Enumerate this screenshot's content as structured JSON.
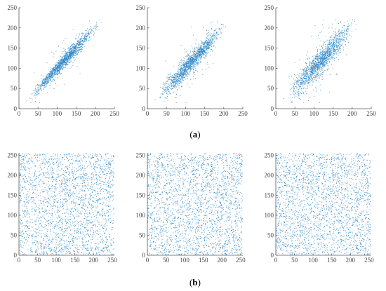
{
  "figure": {
    "caption_a": {
      "open": "(",
      "letter": "a",
      "close": ")"
    },
    "caption_b": {
      "open": "(",
      "letter": "b",
      "close": ")"
    }
  },
  "chart_data": [
    {
      "id": "a1",
      "row": "a",
      "type": "scatter",
      "title": "",
      "xlabel": "",
      "ylabel": "",
      "xlim": [
        0,
        250
      ],
      "ylim": [
        0,
        250
      ],
      "xticks": [
        "0",
        "50",
        "100",
        "150",
        "200",
        "250"
      ],
      "yticks": [
        "0",
        "50",
        "100",
        "150",
        "200",
        "250"
      ],
      "grid": false,
      "color": "#2f88c8",
      "distribution": "correlated",
      "x_range": [
        20,
        215
      ],
      "spread": 8,
      "n_points": 1500,
      "points": [
        [
          20,
          19
        ],
        [
          35,
          38
        ],
        [
          50,
          47
        ],
        [
          75,
          78
        ],
        [
          100,
          102
        ],
        [
          125,
          121
        ],
        [
          150,
          153
        ],
        [
          175,
          172
        ],
        [
          200,
          203
        ],
        [
          215,
          214
        ]
      ]
    },
    {
      "id": "a2",
      "row": "a",
      "type": "scatter",
      "title": "",
      "xlabel": "",
      "ylabel": "",
      "xlim": [
        0,
        250
      ],
      "ylim": [
        0,
        250
      ],
      "xticks": [
        "0",
        "50",
        "100",
        "150",
        "200",
        "250"
      ],
      "yticks": [
        "0",
        "50",
        "100",
        "150",
        "200",
        "250"
      ],
      "grid": false,
      "color": "#2f88c8",
      "distribution": "correlated",
      "x_range": [
        20,
        210
      ],
      "spread": 11,
      "n_points": 1500,
      "points": [
        [
          20,
          22
        ],
        [
          40,
          38
        ],
        [
          60,
          64
        ],
        [
          80,
          79
        ],
        [
          100,
          104
        ],
        [
          120,
          117
        ],
        [
          140,
          143
        ],
        [
          160,
          158
        ],
        [
          180,
          184
        ],
        [
          205,
          203
        ]
      ]
    },
    {
      "id": "a3",
      "row": "a",
      "type": "scatter",
      "title": "",
      "xlabel": "",
      "ylabel": "",
      "xlim": [
        0,
        250
      ],
      "ylim": [
        0,
        250
      ],
      "xticks": [
        "0",
        "50",
        "100",
        "150",
        "200",
        "250"
      ],
      "yticks": [
        "0",
        "50",
        "100",
        "150",
        "200",
        "250"
      ],
      "grid": false,
      "color": "#2f88c8",
      "distribution": "correlated",
      "x_range": [
        20,
        215
      ],
      "spread": 15,
      "n_points": 1500,
      "points": [
        [
          20,
          25
        ],
        [
          40,
          36
        ],
        [
          60,
          66
        ],
        [
          80,
          76
        ],
        [
          100,
          106
        ],
        [
          120,
          114
        ],
        [
          140,
          146
        ],
        [
          160,
          156
        ],
        [
          180,
          186
        ],
        [
          210,
          208
        ]
      ]
    },
    {
      "id": "b1",
      "row": "b",
      "type": "scatter",
      "title": "",
      "xlabel": "",
      "ylabel": "",
      "xlim": [
        0,
        256
      ],
      "ylim": [
        0,
        256
      ],
      "xticks": [
        "0",
        "50",
        "100",
        "150",
        "200",
        "250"
      ],
      "yticks": [
        "0",
        "50",
        "100",
        "150",
        "200",
        "250"
      ],
      "grid": false,
      "color": "#2f88c8",
      "distribution": "uniform",
      "x_range": [
        0,
        255
      ],
      "n_points": 2500,
      "points": [
        [
          12,
          240
        ],
        [
          60,
          30
        ],
        [
          128,
          128
        ],
        [
          200,
          75
        ],
        [
          240,
          210
        ]
      ]
    },
    {
      "id": "b2",
      "row": "b",
      "type": "scatter",
      "title": "",
      "xlabel": "",
      "ylabel": "",
      "xlim": [
        0,
        256
      ],
      "ylim": [
        0,
        256
      ],
      "xticks": [
        "0",
        "50",
        "100",
        "150",
        "200",
        "250"
      ],
      "yticks": [
        "0",
        "50",
        "100",
        "150",
        "200",
        "250"
      ],
      "grid": false,
      "color": "#2f88c8",
      "distribution": "uniform",
      "x_range": [
        0,
        255
      ],
      "n_points": 2500,
      "points": [
        [
          20,
          60
        ],
        [
          90,
          220
        ],
        [
          150,
          110
        ],
        [
          210,
          30
        ],
        [
          245,
          180
        ]
      ]
    },
    {
      "id": "b3",
      "row": "b",
      "type": "scatter",
      "title": "",
      "xlabel": "",
      "ylabel": "",
      "xlim": [
        0,
        256
      ],
      "ylim": [
        0,
        256
      ],
      "xticks": [
        "0",
        "50",
        "100",
        "150",
        "200",
        "250"
      ],
      "yticks": [
        "0",
        "50",
        "100",
        "150",
        "200",
        "250"
      ],
      "grid": false,
      "color": "#2f88c8",
      "distribution": "uniform",
      "x_range": [
        0,
        255
      ],
      "n_points": 2500,
      "points": [
        [
          30,
          150
        ],
        [
          80,
          20
        ],
        [
          130,
          240
        ],
        [
          190,
          90
        ],
        [
          235,
          40
        ]
      ]
    }
  ]
}
